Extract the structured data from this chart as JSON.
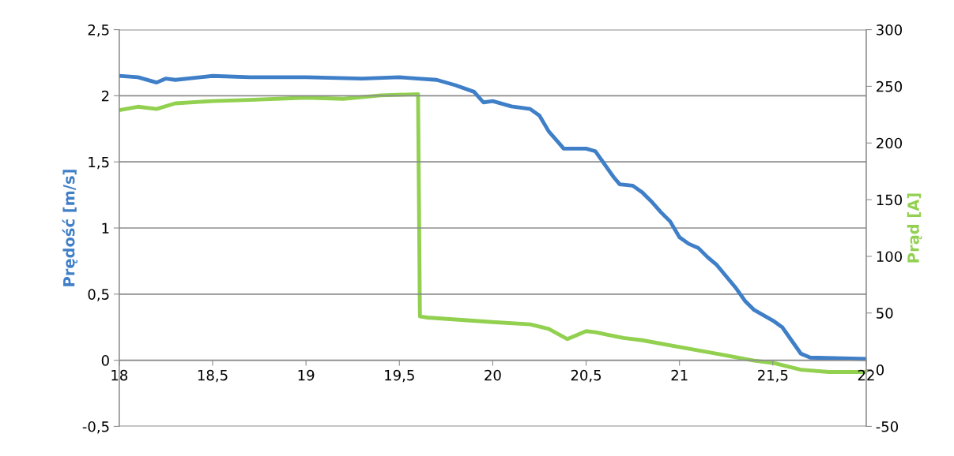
{
  "chart_data": {
    "type": "line",
    "ylabel": "Prędość [m/s]",
    "y2label": "Prąd [A]",
    "xlim": [
      18,
      22
    ],
    "xticks": [
      18,
      {
        "value": 18.5,
        "label": "18,5"
      },
      19,
      {
        "value": 19.5,
        "label": "19,5"
      },
      20,
      {
        "value": 20.5,
        "label": "20,5"
      },
      21,
      {
        "value": 21.5,
        "label": "21,5"
      },
      22
    ],
    "ylim": [
      -0.5,
      2.5
    ],
    "yticks": [
      {
        "value": -0.5,
        "label": "-0,5"
      },
      0,
      {
        "value": 0.5,
        "label": "0,5"
      },
      1,
      {
        "value": 1.5,
        "label": "1,5"
      },
      2,
      {
        "value": 2.5,
        "label": "2,5"
      }
    ],
    "y2lim": [
      -50,
      300
    ],
    "y2ticks": [
      -50,
      0,
      50,
      100,
      150,
      200,
      250,
      300
    ],
    "grid": "y",
    "marker": "none",
    "line_style": "solid",
    "series": [
      {
        "color": "#3f7fc8",
        "x": [
          18,
          18.1,
          18.2,
          18.25,
          18.3,
          18.5,
          18.7,
          19,
          19.3,
          19.5,
          19.6,
          19.7,
          19.8,
          19.9,
          19.95,
          20.0,
          20.1,
          20.2,
          20.25,
          20.3,
          20.35,
          20.38,
          20.5,
          20.55,
          20.6,
          20.65,
          20.68,
          20.75,
          20.8,
          20.85,
          20.9,
          20.95,
          21.0,
          21.05,
          21.1,
          21.15,
          21.2,
          21.3,
          21.35,
          21.4,
          21.5,
          21.55,
          21.6,
          21.65,
          21.7,
          22
        ],
        "values": [
          2.15,
          2.14,
          2.1,
          2.13,
          2.12,
          2.15,
          2.14,
          2.14,
          2.13,
          2.14,
          2.13,
          2.12,
          2.08,
          2.03,
          1.95,
          1.96,
          1.92,
          1.9,
          1.85,
          1.73,
          1.65,
          1.6,
          1.6,
          1.58,
          1.48,
          1.38,
          1.33,
          1.32,
          1.27,
          1.2,
          1.12,
          1.05,
          0.93,
          0.88,
          0.85,
          0.78,
          0.72,
          0.55,
          0.45,
          0.38,
          0.3,
          0.25,
          0.15,
          0.05,
          0.02,
          0.01
        ]
      },
      {
        "color": "#92d050",
        "axis": "y2",
        "x": [
          18,
          18.1,
          18.2,
          18.3,
          18.5,
          18.7,
          19,
          19.2,
          19.4,
          19.6,
          19.61,
          19.65,
          20.0,
          20.2,
          20.3,
          20.4,
          20.5,
          20.55,
          20.7,
          20.8,
          21.0,
          21.2,
          21.4,
          21.5,
          21.65,
          21.8,
          22
        ],
        "values": [
          229,
          232,
          230,
          235,
          237,
          238,
          240,
          239,
          242,
          243,
          47,
          46,
          42,
          40,
          36,
          27,
          34,
          33,
          28,
          26,
          20,
          14,
          8,
          6,
          0,
          -2,
          -2
        ]
      }
    ]
  }
}
